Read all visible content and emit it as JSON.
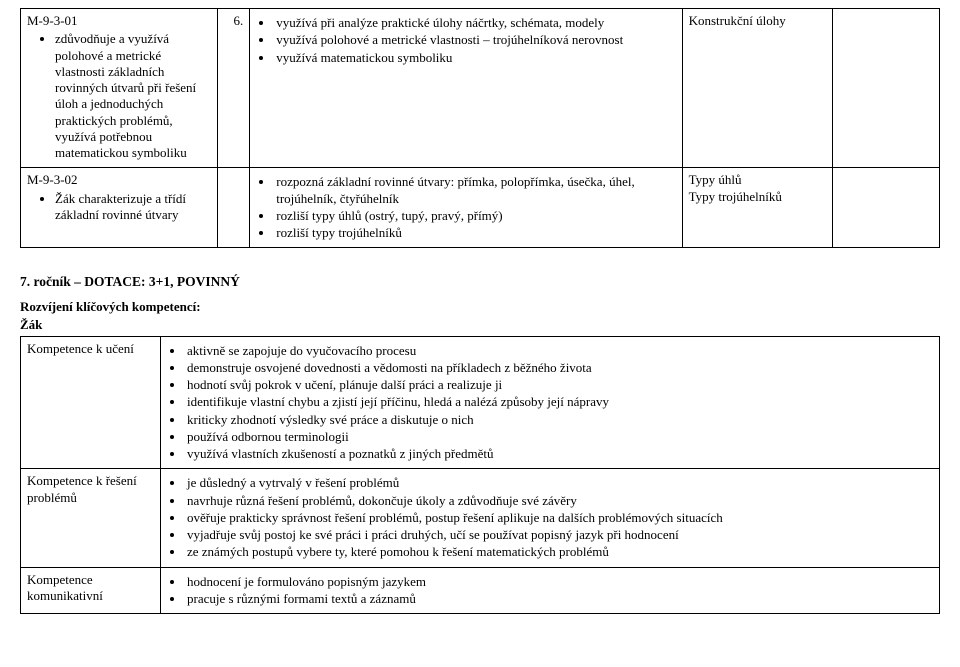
{
  "table1": {
    "widths": {
      "c1": 196,
      "c2": 32,
      "c3": 430,
      "c4": 150,
      "c5": 106
    },
    "rows": [
      {
        "left": {
          "code": "M-9-3-01",
          "items": [
            "zdůvodňuje a využívá polohové a metrické vlastnosti základních rovinných útvarů při řešení úloh a jednoduchých praktických problémů, využívá potřebnou matematickou symboliku"
          ]
        },
        "num": "6.",
        "mid": [
          "využívá při analýze praktické úlohy náčrtky, schémata, modely",
          "využívá polohové a metrické vlastnosti – trojúhelníková nerovnost",
          "využívá matematickou symboliku"
        ],
        "right": "Konstrukční úlohy"
      },
      {
        "left": {
          "code": "M-9-3-02",
          "items": [
            "Žák charakterizuje a třídí základní rovinné útvary"
          ]
        },
        "num": "",
        "mid": [
          "rozpozná základní rovinné útvary: přímka, polopřímka, úsečka, úhel, trojúhelník, čtyřúhelník",
          "rozliší typy úhlů (ostrý, tupý, pravý, přímý)",
          "rozliší typy trojúhelníků"
        ],
        "right": "Typy úhlů\nTypy trojúhelníků"
      }
    ]
  },
  "section_title": "7. ročník – DOTACE: 3+1, POVINNÝ",
  "sub_title": "Rozvíjení klíčových kompetencí:",
  "zak_label": "Žák",
  "table2": {
    "widths": {
      "c1": 140,
      "c2": 774
    },
    "rows": [
      {
        "label": "Kompetence k učení",
        "items": [
          "aktivně se zapojuje do vyučovacího procesu",
          "demonstruje osvojené dovednosti a vědomosti na příkladech z běžného života",
          "hodnotí svůj pokrok v učení, plánuje další práci a realizuje ji",
          "identifikuje vlastní chybu a zjistí její příčinu, hledá a nalézá způsoby její nápravy",
          "kriticky zhodnotí výsledky své práce a diskutuje o nich",
          "používá odbornou terminologii",
          "využívá vlastních zkušeností a poznatků z jiných předmětů"
        ]
      },
      {
        "label": "Kompetence k řešení problémů",
        "items": [
          "je důsledný a vytrvalý v řešení problémů",
          "navrhuje různá řešení problémů, dokončuje úkoly a zdůvodňuje své závěry",
          "ověřuje prakticky správnost řešení problémů, postup řešení aplikuje na dalších problémových situacích",
          "vyjadřuje svůj postoj ke své práci i práci druhých, učí se používat popisný jazyk při hodnocení",
          "ze známých postupů vybere ty, které pomohou k řešení matematických problémů"
        ]
      },
      {
        "label": "Kompetence komunikativní",
        "items": [
          "hodnocení je formulováno popisným jazykem",
          "pracuje s různými formami textů a záznamů"
        ]
      }
    ]
  }
}
